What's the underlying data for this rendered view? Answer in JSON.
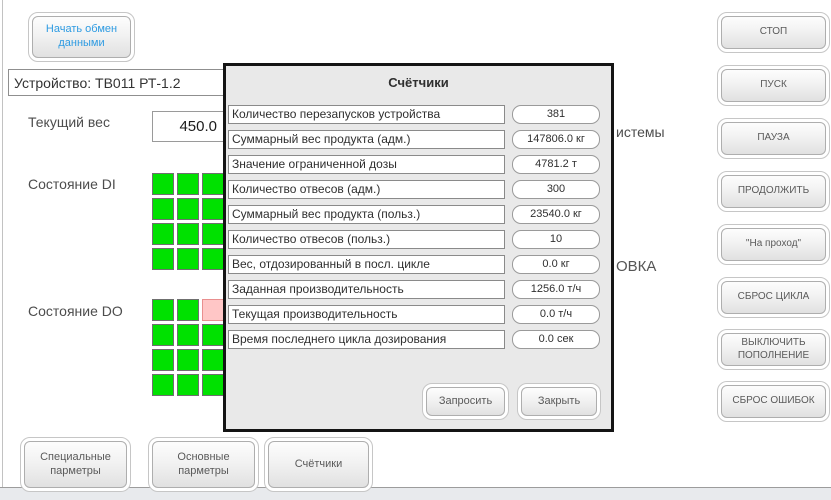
{
  "colors": {
    "accent_blue": "#2e9be2",
    "indicator_on": "#00e100",
    "indicator_alarm_fill": "#ffc6c6",
    "indicator_alarm_border": "#e98f8f",
    "dialog_bg": "#e9e9e9",
    "dialog_border": "#141414",
    "button_text": "#5a5a5a"
  },
  "app": {
    "start_exchange_button": {
      "label": "Начать обмен данными"
    },
    "device_label": "Устройство: ТВ011 РТ-1.2",
    "current_weight": {
      "label": "Текущий вес",
      "value": "450.0"
    },
    "di": {
      "label": "Состояние DI",
      "cells": [
        [
          "on",
          "on",
          "on"
        ],
        [
          "on",
          "on",
          "on"
        ],
        [
          "on",
          "on",
          "on"
        ],
        [
          "on",
          "on",
          "on"
        ]
      ]
    },
    "do": {
      "label": "Состояние DO",
      "cells": [
        [
          "on",
          "on",
          "alarm"
        ],
        [
          "on",
          "on",
          "on"
        ],
        [
          "on",
          "on",
          "on"
        ],
        [
          "on",
          "on",
          "on"
        ]
      ]
    },
    "background_fragments": {
      "top": "истемы",
      "bottom": "ОВКА"
    },
    "bottom_tabs": [
      {
        "id": "special-params",
        "label": "Специальные парметры"
      },
      {
        "id": "main-params",
        "label": "Основные парметры"
      },
      {
        "id": "counters",
        "label": "Счётчики"
      }
    ],
    "right_buttons": [
      {
        "id": "stop",
        "label": "СТОП"
      },
      {
        "id": "start",
        "label": "ПУСК"
      },
      {
        "id": "pause",
        "label": "ПАУЗА"
      },
      {
        "id": "continue",
        "label": "ПРОДОЛЖИТЬ"
      },
      {
        "id": "bypass",
        "label": "\"На проход\""
      },
      {
        "id": "cycle-reset",
        "label": "СБРОС ЦИКЛА"
      },
      {
        "id": "refill-off",
        "label": "ВЫКЛЮЧИТЬ ПОПОЛНЕНИЕ"
      },
      {
        "id": "error-reset",
        "label": "СБРОС ОШИБОК"
      }
    ]
  },
  "dialog": {
    "title": "Счётчики",
    "rows": [
      {
        "label": "Количество перезапусков устройства",
        "value": "381"
      },
      {
        "label": "Суммарный вес продукта (адм.)",
        "value": "147806.0 кг"
      },
      {
        "label": "Значение ограниченной дозы",
        "value": "4781.2 т"
      },
      {
        "label": "Количество отвесов (адм.)",
        "value": "300"
      },
      {
        "label": "Суммарный вес продукта (польз.)",
        "value": "23540.0 кг"
      },
      {
        "label": "Количество отвесов (польз.)",
        "value": "10"
      },
      {
        "label": "Вес, отдозированный в посл. цикле",
        "value": "0.0 кг"
      },
      {
        "label": "Заданная производительность",
        "value": "1256.0 т/ч"
      },
      {
        "label": "Текущая производительность",
        "value": "0.0 т/ч"
      },
      {
        "label": "Время последнего цикла дозирования",
        "value": "0.0 сек"
      }
    ],
    "buttons": {
      "request": "Запросить",
      "close": "Закрыть"
    }
  }
}
